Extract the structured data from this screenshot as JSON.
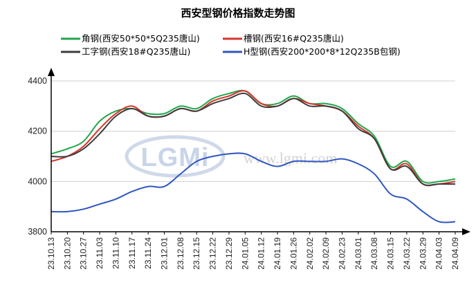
{
  "chart_data": {
    "type": "line",
    "title": "西安型钢价格指数走势图",
    "xlabel": "",
    "ylabel": "",
    "ylim": [
      3800,
      4400
    ],
    "yticks": [
      3800,
      4000,
      4200,
      4400
    ],
    "grid": "horizontal",
    "legend_position": "top",
    "x_tick_labels": [
      "23.10.13",
      "23.10.20",
      "23.10.27",
      "23.11.03",
      "23.11.10",
      "23.11.17",
      "23.11.24",
      "23.12.01",
      "23.12.08",
      "23.12.15",
      "23.12.22",
      "23.12.29",
      "24.01.05",
      "24.01.12",
      "24.01.19",
      "24.01.26",
      "24.02.02",
      "24.02.09",
      "24.02.23",
      "24.03.01",
      "24.03.08",
      "24.03.15",
      "24.03.22",
      "24.03.29",
      "24.04.03",
      "24.04.09"
    ],
    "x": [
      "23.10.13",
      "23.10.20",
      "23.10.27",
      "23.11.03",
      "23.11.10",
      "23.11.17",
      "23.11.24",
      "23.12.01",
      "23.12.08",
      "23.12.15",
      "23.12.22",
      "23.12.29",
      "24.01.05",
      "24.01.12",
      "24.01.19",
      "24.01.26",
      "24.02.02",
      "24.02.09",
      "24.02.23",
      "24.03.01",
      "24.03.08",
      "24.03.15",
      "24.03.22",
      "24.03.29",
      "24.04.03",
      "24.04.09"
    ],
    "series": [
      {
        "name": "角钢(西安50*50*5Q235唐山)",
        "color": "#1fa64a",
        "values": [
          4110,
          4130,
          4160,
          4240,
          4280,
          4290,
          4270,
          4270,
          4300,
          4290,
          4330,
          4350,
          4360,
          4310,
          4310,
          4340,
          4310,
          4310,
          4290,
          4230,
          4180,
          4060,
          4080,
          4000,
          4000,
          4010
        ]
      },
      {
        "name": "槽钢(西安16#Q235唐山)",
        "color": "#d8322a",
        "values": [
          4080,
          4100,
          4140,
          4210,
          4270,
          4300,
          4260,
          4260,
          4290,
          4280,
          4320,
          4340,
          4360,
          4310,
          4300,
          4330,
          4310,
          4300,
          4280,
          4220,
          4170,
          4050,
          4070,
          3990,
          3990,
          4000
        ]
      },
      {
        "name": "工字钢(西安18#Q235唐山)",
        "color": "#3c3c3c",
        "values": [
          4100,
          4100,
          4130,
          4190,
          4260,
          4290,
          4260,
          4260,
          4290,
          4280,
          4310,
          4330,
          4350,
          4300,
          4300,
          4330,
          4300,
          4300,
          4280,
          4210,
          4170,
          4050,
          4060,
          3990,
          3990,
          3990
        ]
      },
      {
        "name": "H型钢(西安200*200*8*12Q235B包钢)",
        "color": "#2f56c0",
        "values": [
          3880,
          3880,
          3890,
          3910,
          3930,
          3960,
          3980,
          3980,
          4030,
          4080,
          4100,
          4110,
          4110,
          4080,
          4060,
          4080,
          4080,
          4080,
          4090,
          4070,
          4030,
          3950,
          3930,
          3880,
          3840,
          3840
        ]
      }
    ]
  },
  "watermark": {
    "logo": "LGMi",
    "url": "www.lgmi.com"
  }
}
